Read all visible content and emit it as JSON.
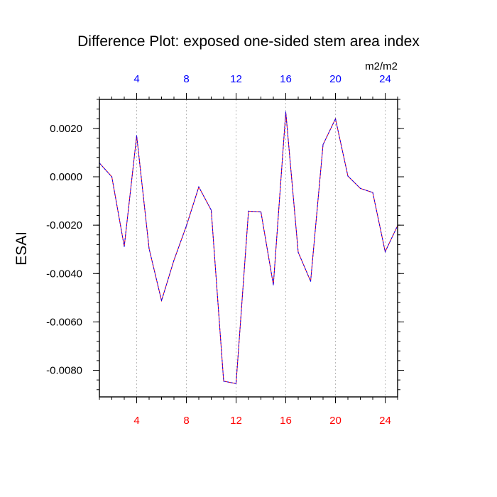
{
  "chart_data": {
    "type": "line",
    "title": "Difference Plot: exposed one-sided stem area index",
    "units": "m2/m2",
    "ylabel": "ESAI",
    "xlabel": "",
    "xlim": [
      1,
      25
    ],
    "ylim": [
      -0.0091,
      0.0032
    ],
    "x_ticks": [
      4,
      8,
      12,
      16,
      20,
      24
    ],
    "x_tick_labels": [
      "4",
      "8",
      "12",
      "16",
      "20",
      "24"
    ],
    "y_ticks": [
      0.002,
      0.0,
      -0.002,
      -0.004,
      -0.006,
      -0.008
    ],
    "y_tick_labels": [
      "0.0020",
      "0.0000",
      "-0.0020",
      "-0.0040",
      "-0.0060",
      "-0.0080"
    ],
    "grid": "vertical dashed at major x ticks",
    "colors": {
      "bottom_tick_labels": "#ff0000",
      "top_tick_labels": "#0000ff",
      "series_line": "#ff0000",
      "series_dash": "#0000ff",
      "grid": "#aaaaaa"
    },
    "x": [
      1,
      2,
      3,
      4,
      5,
      6,
      7,
      8,
      9,
      10,
      11,
      12,
      13,
      14,
      15,
      16,
      17,
      18,
      19,
      20,
      21,
      22,
      23,
      24,
      25
    ],
    "series": [
      {
        "values": [
          0.00057,
          0.0,
          -0.00288,
          0.0017,
          -0.00297,
          -0.00512,
          -0.00345,
          -0.00203,
          -0.00042,
          -0.00138,
          -0.00845,
          -0.00855,
          -0.00142,
          -0.00145,
          -0.00447,
          0.00268,
          -0.00312,
          -0.00432,
          0.00133,
          0.0024,
          3e-05,
          -0.00048,
          -0.00065,
          -0.0031,
          -0.00202
        ]
      }
    ]
  }
}
